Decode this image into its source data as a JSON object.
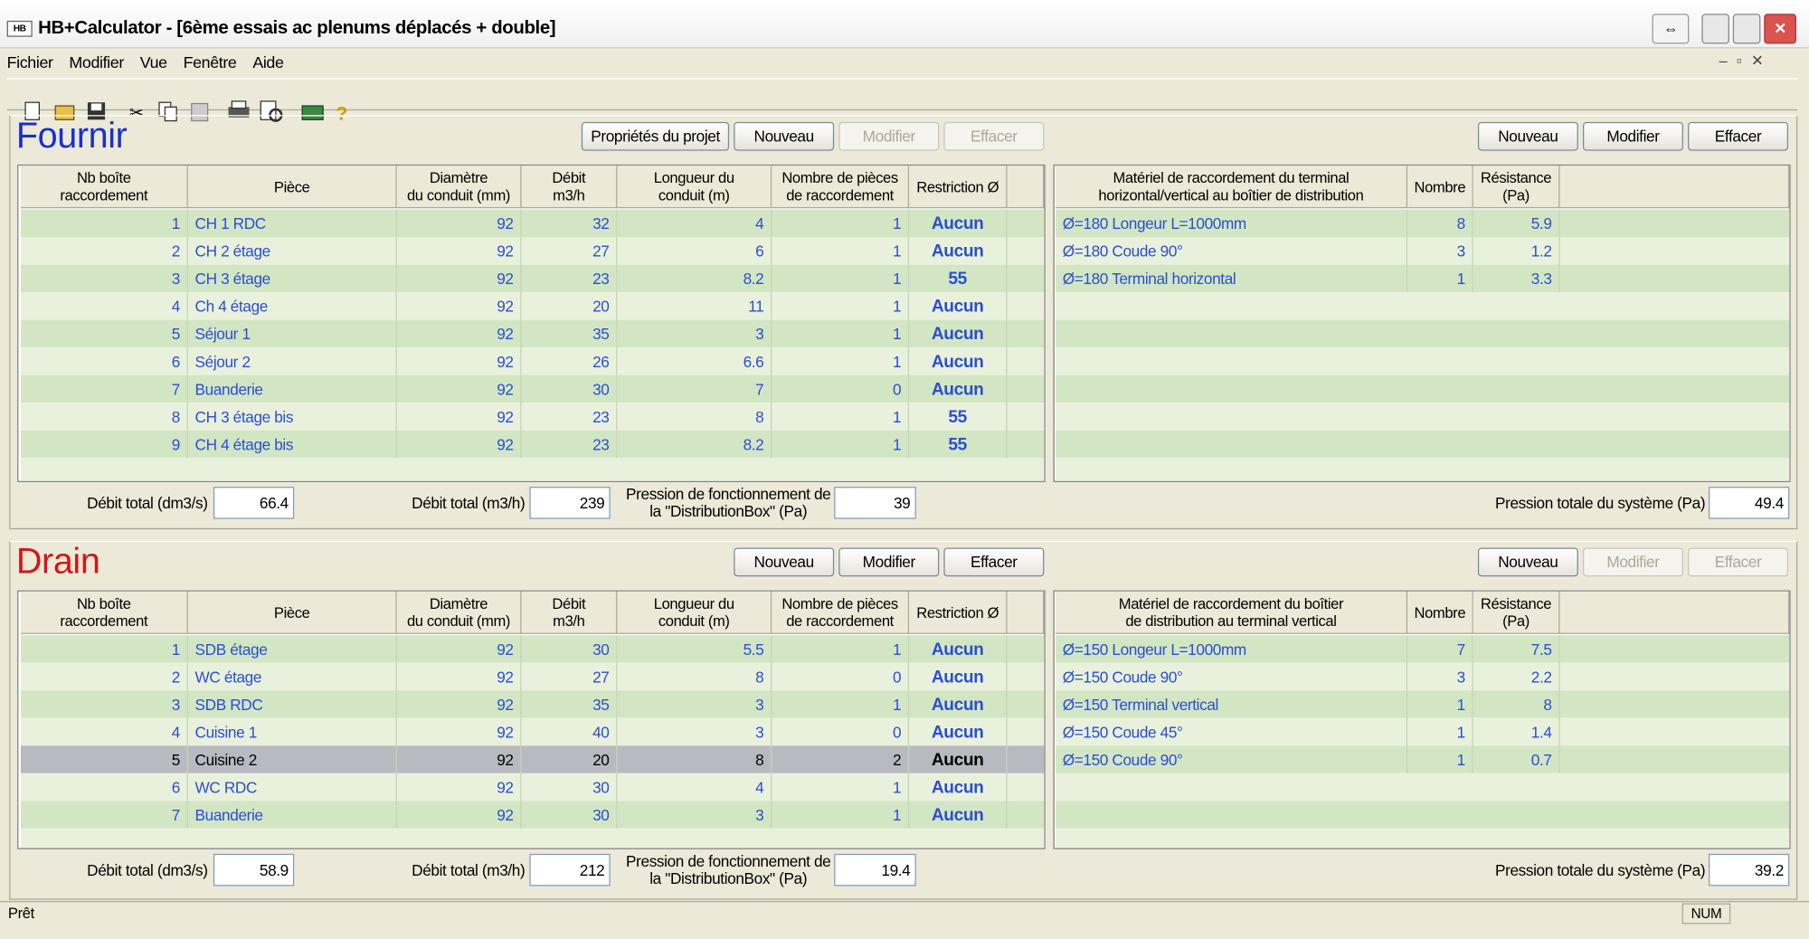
{
  "window": {
    "title": "HB+Calculator - [6ème essais ac plenums déplacés + double]",
    "menu": [
      "Fichier",
      "Modifier",
      "Vue",
      "Fenêtre",
      "Aide"
    ]
  },
  "sections": [
    {
      "title": "Fournir",
      "title_color": "#1a2fd0",
      "left_buttons": [
        {
          "label": "Propriétés du projet",
          "enabled": true
        },
        {
          "label": "Nouveau",
          "enabled": true
        },
        {
          "label": "Modifier",
          "enabled": false
        },
        {
          "label": "Effacer",
          "enabled": false
        }
      ],
      "right_buttons": [
        {
          "label": "Nouveau",
          "enabled": true
        },
        {
          "label": "Modifier",
          "enabled": true
        },
        {
          "label": "Effacer",
          "enabled": true
        }
      ],
      "left_table": {
        "headers": [
          "Nb boîte\nraccordement",
          "Pièce",
          "Diamètre\ndu conduit (mm)",
          "Débit\nm3/h",
          "Longueur du\nconduit (m)",
          "Nombre de pièces\nde raccordement",
          "Restriction Ø"
        ],
        "rows": [
          [
            "1",
            "CH 1 RDC",
            "92",
            "32",
            "4",
            "1",
            "Aucun"
          ],
          [
            "2",
            "CH 2 étage",
            "92",
            "27",
            "6",
            "1",
            "Aucun"
          ],
          [
            "3",
            "CH 3 étage",
            "92",
            "23",
            "8.2",
            "1",
            "55"
          ],
          [
            "4",
            "Ch 4 étage",
            "92",
            "20",
            "11",
            "1",
            "Aucun"
          ],
          [
            "5",
            "Séjour 1",
            "92",
            "35",
            "3",
            "1",
            "Aucun"
          ],
          [
            "6",
            "Séjour 2",
            "92",
            "26",
            "6.6",
            "1",
            "Aucun"
          ],
          [
            "7",
            "Buanderie",
            "92",
            "30",
            "7",
            "0",
            "Aucun"
          ],
          [
            "8",
            "CH 3 étage bis",
            "92",
            "23",
            "8",
            "1",
            "55"
          ],
          [
            "9",
            "CH 4 étage bis",
            "92",
            "23",
            "8.2",
            "1",
            "55"
          ]
        ]
      },
      "right_table": {
        "headers": [
          "Matériel de raccordement du terminal\nhorizontal/vertical au boîtier de distribution",
          "Nombre",
          "Résistance\n(Pa)"
        ],
        "rows": [
          [
            "Ø=180 Longeur L=1000mm",
            "8",
            "5.9"
          ],
          [
            "Ø=180 Coude 90°",
            "3",
            "1.2"
          ],
          [
            "Ø=180 Terminal horizontal",
            "1",
            "3.3"
          ]
        ]
      },
      "totals": [
        {
          "label": "Débit total (dm3/s)",
          "value": "66.4"
        },
        {
          "label": "Débit total (m3/h)",
          "value": "239"
        },
        {
          "label": "Pression de fonctionnement de\nla \"DistributionBox\" (Pa)",
          "value": "39"
        }
      ],
      "system_pressure": {
        "label": "Pression totale du système (Pa)",
        "value": "49.4"
      }
    },
    {
      "title": "Drain",
      "title_color": "#d01818",
      "left_buttons": [
        {
          "label": "Nouveau",
          "enabled": true
        },
        {
          "label": "Modifier",
          "enabled": true
        },
        {
          "label": "Effacer",
          "enabled": true
        }
      ],
      "right_buttons": [
        {
          "label": "Nouveau",
          "enabled": true
        },
        {
          "label": "Modifier",
          "enabled": false
        },
        {
          "label": "Effacer",
          "enabled": false
        }
      ],
      "left_table": {
        "headers": [
          "Nb boîte\nraccordement",
          "Pièce",
          "Diamètre\ndu conduit (mm)",
          "Débit\nm3/h",
          "Longueur du\nconduit (m)",
          "Nombre de pièces\nde raccordement",
          "Restriction Ø"
        ],
        "selected_row": 4,
        "rows": [
          [
            "1",
            "SDB étage",
            "92",
            "30",
            "5.5",
            "1",
            "Aucun"
          ],
          [
            "2",
            "WC étage",
            "92",
            "27",
            "8",
            "0",
            "Aucun"
          ],
          [
            "3",
            "SDB RDC",
            "92",
            "35",
            "3",
            "1",
            "Aucun"
          ],
          [
            "4",
            "Cuisine 1",
            "92",
            "40",
            "3",
            "0",
            "Aucun"
          ],
          [
            "5",
            "Cuisine 2",
            "92",
            "20",
            "8",
            "2",
            "Aucun"
          ],
          [
            "6",
            "WC RDC",
            "92",
            "30",
            "4",
            "1",
            "Aucun"
          ],
          [
            "7",
            "Buanderie",
            "92",
            "30",
            "3",
            "1",
            "Aucun"
          ]
        ]
      },
      "right_table": {
        "headers": [
          "Matériel de raccordement du boîtier\nde distribution au terminal vertical",
          "Nombre",
          "Résistance\n(Pa)"
        ],
        "rows": [
          [
            "Ø=150 Longeur L=1000mm",
            "7",
            "7.5"
          ],
          [
            "Ø=150 Coude 90°",
            "3",
            "2.2"
          ],
          [
            "Ø=150 Terminal vertical",
            "1",
            "8"
          ],
          [
            "Ø=150 Coude 45°",
            "1",
            "1.4"
          ],
          [
            "Ø=150 Coude 90°",
            "1",
            "0.7"
          ]
        ]
      },
      "totals": [
        {
          "label": "Débit total (dm3/s)",
          "value": "58.9"
        },
        {
          "label": "Débit total (m3/h)",
          "value": "212"
        },
        {
          "label": "Pression de fonctionnement de\nla \"DistributionBox\" (Pa)",
          "value": "19.4"
        }
      ],
      "system_pressure": {
        "label": "Pression totale du système (Pa)",
        "value": "39.2"
      }
    }
  ],
  "status": {
    "text": "Prêt",
    "indicator": "NUM"
  }
}
